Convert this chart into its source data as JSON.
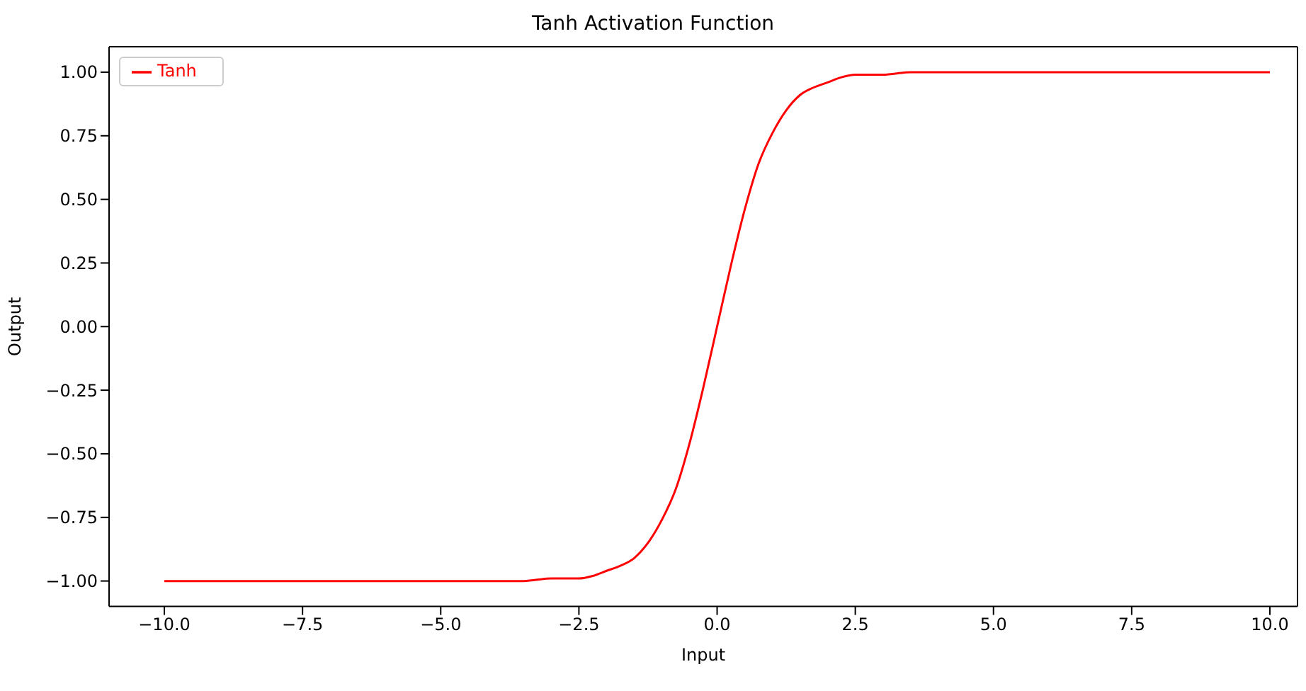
{
  "chart_data": {
    "type": "line",
    "title": "Tanh Activation Function",
    "xlabel": "Input",
    "ylabel": "Output",
    "x": [
      -10,
      -8,
      -6,
      -5,
      -4,
      -3.5,
      -3,
      -2.75,
      -2.5,
      -2.25,
      -2,
      -1.75,
      -1.5,
      -1.25,
      -1,
      -0.75,
      -0.5,
      -0.25,
      0,
      0.25,
      0.5,
      0.75,
      1,
      1.25,
      1.5,
      1.75,
      2,
      2.25,
      2.5,
      2.75,
      3,
      3.5,
      4,
      5,
      6,
      8,
      10
    ],
    "series": [
      {
        "name": "Tanh",
        "color": "#ff0000",
        "values": [
          -1,
          -1,
          -1,
          -1,
          -1,
          -1,
          -0.99,
          -0.99,
          -0.99,
          -0.98,
          -0.96,
          -0.94,
          -0.91,
          -0.85,
          -0.76,
          -0.64,
          -0.46,
          -0.24,
          0,
          0.24,
          0.46,
          0.64,
          0.76,
          0.85,
          0.91,
          0.94,
          0.96,
          0.98,
          0.99,
          0.99,
          0.99,
          1,
          1,
          1,
          1,
          1,
          1
        ]
      }
    ],
    "xlim": [
      -11,
      10.5
    ],
    "xticks": [
      {
        "value": -10,
        "label": "−10.0"
      },
      {
        "value": -7.5,
        "label": "−7.5"
      },
      {
        "value": -5,
        "label": "−5.0"
      },
      {
        "value": -2.5,
        "label": "−2.5"
      },
      {
        "value": 0,
        "label": "0.0"
      },
      {
        "value": 2.5,
        "label": "2.5"
      },
      {
        "value": 5,
        "label": "5.0"
      },
      {
        "value": 7.5,
        "label": "7.5"
      },
      {
        "value": 10,
        "label": "10.0"
      }
    ],
    "ylim": [
      -1.1,
      1.1
    ],
    "yticks": [
      {
        "value": -1,
        "label": "−1.00"
      },
      {
        "value": -0.75,
        "label": "−0.75"
      },
      {
        "value": -0.5,
        "label": "−0.50"
      },
      {
        "value": -0.25,
        "label": "−0.25"
      },
      {
        "value": 0,
        "label": "0.00"
      },
      {
        "value": 0.25,
        "label": "0.25"
      },
      {
        "value": 0.5,
        "label": "0.50"
      },
      {
        "value": 0.75,
        "label": "0.75"
      },
      {
        "value": 1,
        "label": "1.00"
      }
    ],
    "legend": "top left",
    "grid": false,
    "marker": "none",
    "line_style": "solid"
  }
}
